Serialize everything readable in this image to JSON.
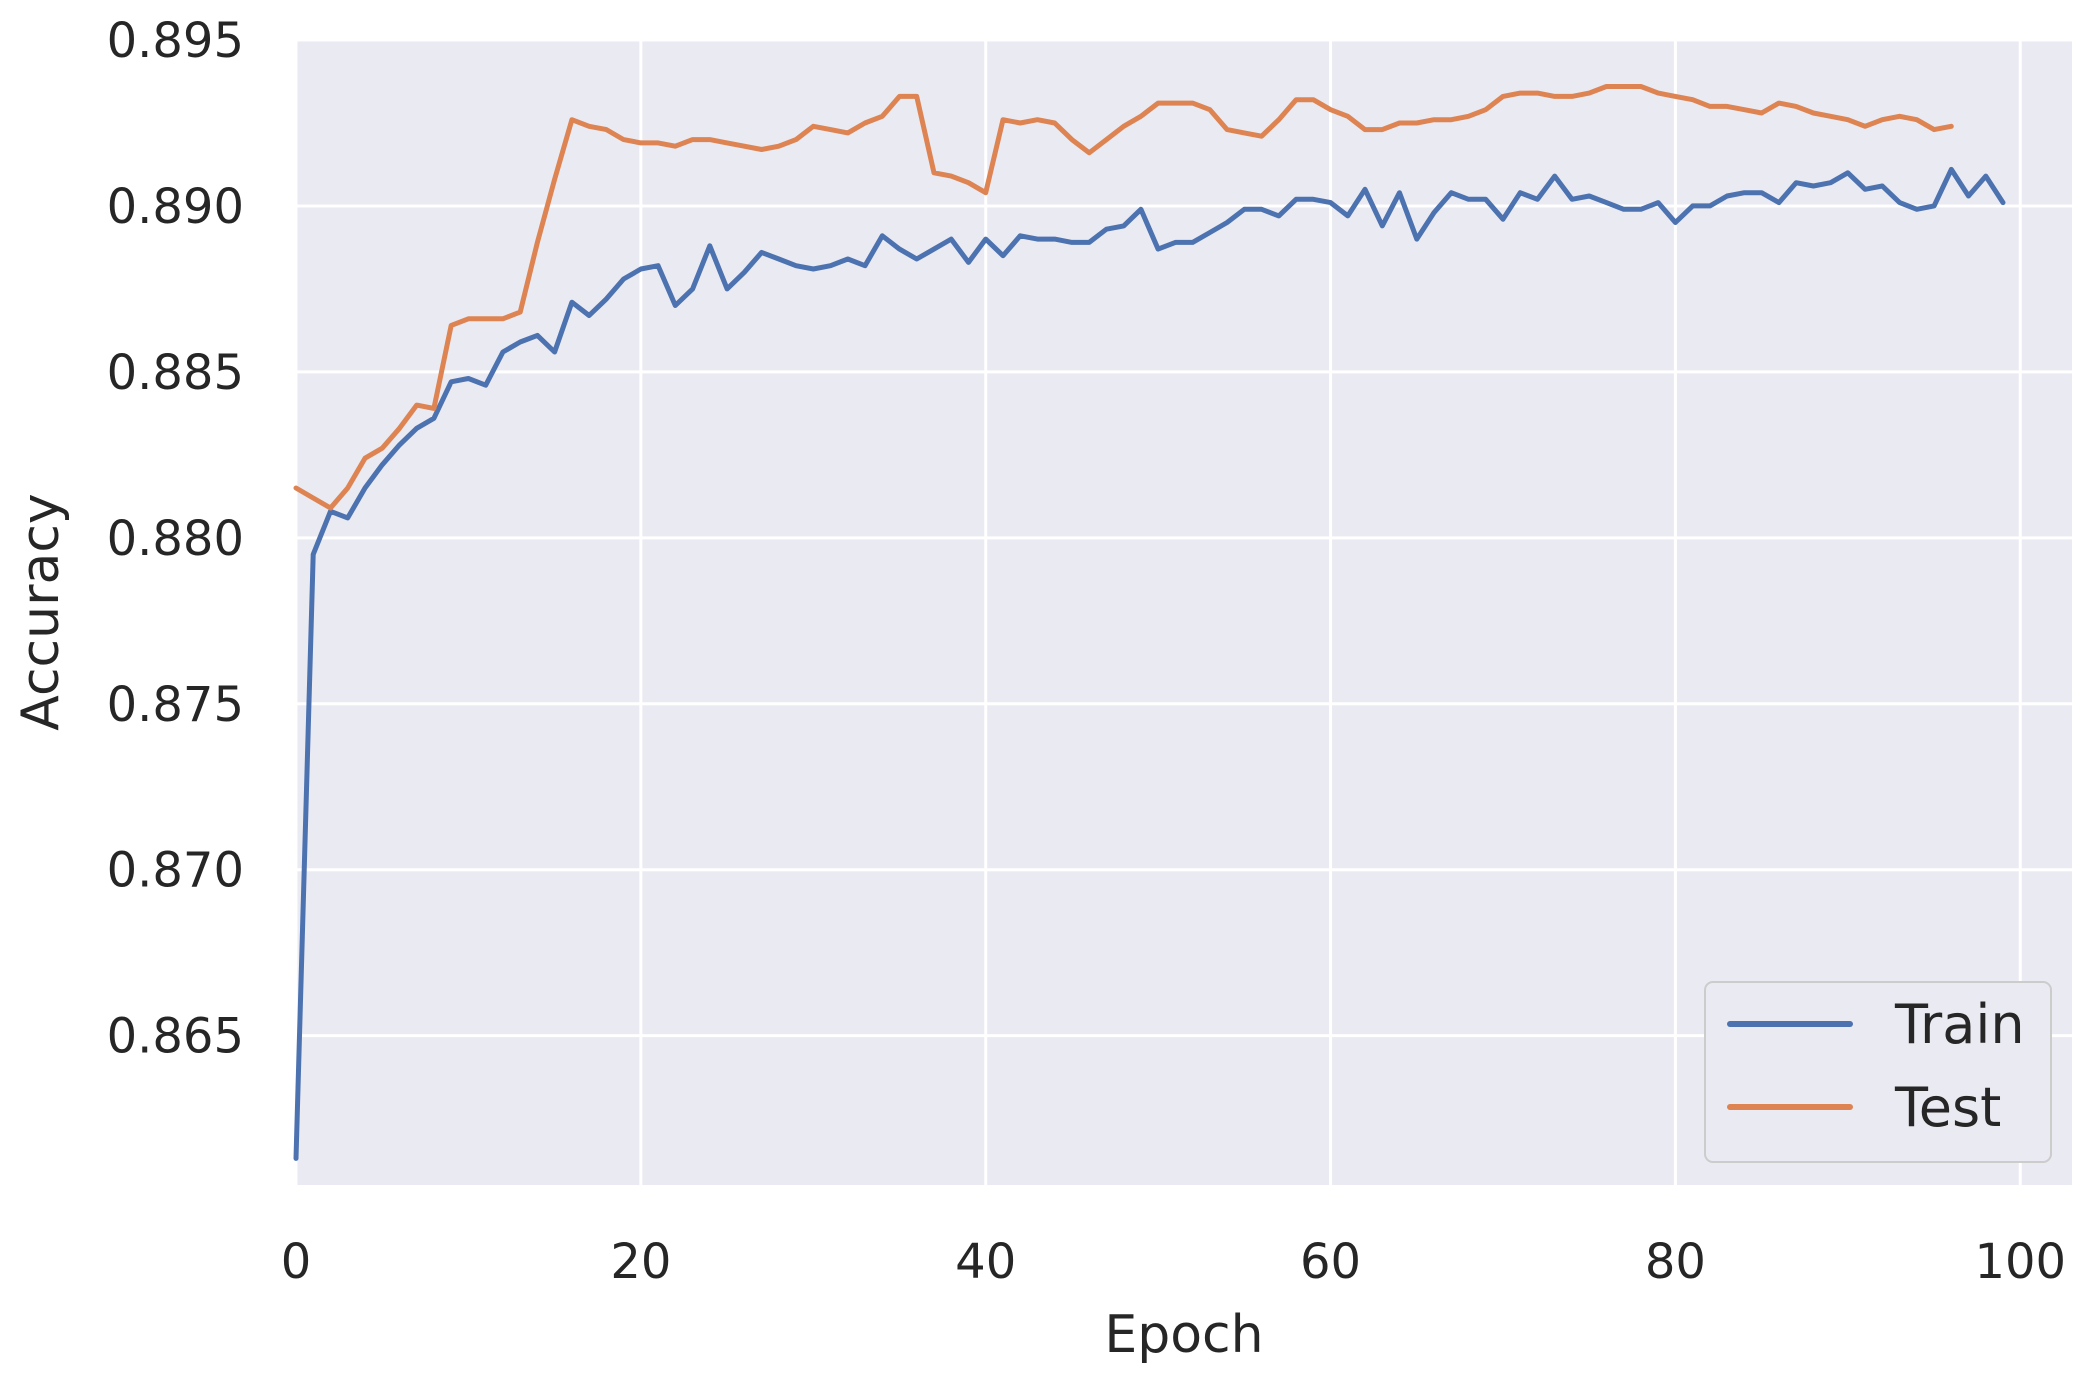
{
  "chart_data": {
    "type": "line",
    "xlabel": "Epoch",
    "ylabel": "Accuracy",
    "xlim": [
      0,
      103
    ],
    "ylim": [
      0.8605,
      0.895
    ],
    "xticks": [
      0,
      20,
      40,
      60,
      80,
      100
    ],
    "xtick_labels": [
      "0",
      "20",
      "40",
      "60",
      "80",
      "100"
    ],
    "yticks": [
      0.865,
      0.87,
      0.875,
      0.88,
      0.885,
      0.89,
      0.895
    ],
    "ytick_labels": [
      "0.865",
      "0.870",
      "0.875",
      "0.880",
      "0.885",
      "0.890",
      "0.895"
    ],
    "grid": true,
    "legend_position": "bottom-right",
    "series": [
      {
        "name": "Train",
        "color": "#4c72b0",
        "x": [
          0,
          1,
          2,
          3,
          4,
          5,
          6,
          7,
          8,
          9,
          10,
          11,
          12,
          13,
          14,
          15,
          16,
          17,
          18,
          19,
          20,
          21,
          22,
          23,
          24,
          25,
          26,
          27,
          28,
          29,
          30,
          31,
          32,
          33,
          34,
          35,
          36,
          37,
          38,
          39,
          40,
          41,
          42,
          43,
          44,
          45,
          46,
          47,
          48,
          49,
          50,
          51,
          52,
          53,
          54,
          55,
          56,
          57,
          58,
          59,
          60,
          61,
          62,
          63,
          64,
          65,
          66,
          67,
          68,
          69,
          70,
          71,
          72,
          73,
          74,
          75,
          76,
          77,
          78,
          79,
          80,
          81,
          82,
          83,
          84,
          85,
          86,
          87,
          88,
          89,
          90,
          91,
          92,
          93,
          94,
          95,
          96,
          97,
          98,
          99
        ],
        "y": [
          0.8613,
          0.8795,
          0.8808,
          0.8806,
          0.8815,
          0.8822,
          0.8828,
          0.8833,
          0.8836,
          0.8847,
          0.8848,
          0.8846,
          0.8856,
          0.8859,
          0.8861,
          0.8856,
          0.8871,
          0.8867,
          0.8872,
          0.8878,
          0.8881,
          0.8882,
          0.887,
          0.8875,
          0.8888,
          0.8875,
          0.888,
          0.8886,
          0.8884,
          0.8882,
          0.8881,
          0.8882,
          0.8884,
          0.8882,
          0.8891,
          0.8887,
          0.8884,
          0.8887,
          0.889,
          0.8883,
          0.889,
          0.8885,
          0.8891,
          0.889,
          0.889,
          0.8889,
          0.8889,
          0.8893,
          0.8894,
          0.8899,
          0.8887,
          0.8889,
          0.8889,
          0.8892,
          0.8895,
          0.8899,
          0.8899,
          0.8897,
          0.8902,
          0.8902,
          0.8901,
          0.8897,
          0.8905,
          0.8894,
          0.8904,
          0.889,
          0.8898,
          0.8904,
          0.8902,
          0.8902,
          0.8896,
          0.8904,
          0.8902,
          0.8909,
          0.8902,
          0.8903,
          0.8901,
          0.8899,
          0.8899,
          0.8901,
          0.8895,
          0.89,
          0.89,
          0.8903,
          0.8904,
          0.8904,
          0.8901,
          0.8907,
          0.8906,
          0.8907,
          0.891,
          0.8905,
          0.8906,
          0.8901,
          0.8899,
          0.89,
          0.8911,
          0.8903,
          0.8909,
          0.8901
        ]
      },
      {
        "name": "Test",
        "color": "#dd8452",
        "x": [
          0,
          1,
          2,
          3,
          4,
          5,
          6,
          7,
          8,
          9,
          10,
          11,
          12,
          13,
          14,
          15,
          16,
          17,
          18,
          19,
          20,
          21,
          22,
          23,
          24,
          25,
          26,
          27,
          28,
          29,
          30,
          31,
          32,
          33,
          34,
          35,
          36,
          37,
          38,
          39,
          40,
          41,
          42,
          43,
          44,
          45,
          46,
          47,
          48,
          49,
          50,
          51,
          52,
          53,
          54,
          55,
          56,
          57,
          58,
          59,
          60,
          61,
          62,
          63,
          64,
          65,
          66,
          67,
          68,
          69,
          70,
          71,
          72,
          73,
          74,
          75,
          76,
          77,
          78,
          79,
          80,
          81,
          82,
          83,
          84,
          85,
          86,
          87,
          88,
          89,
          90,
          91,
          92,
          93,
          94,
          95,
          96
        ],
        "y": [
          0.8815,
          0.8812,
          0.8809,
          0.8815,
          0.8824,
          0.8827,
          0.8833,
          0.884,
          0.8839,
          0.8864,
          0.8866,
          0.8866,
          0.8866,
          0.8868,
          0.8889,
          0.8908,
          0.8926,
          0.8924,
          0.8923,
          0.892,
          0.8919,
          0.8919,
          0.8918,
          0.892,
          0.892,
          0.8919,
          0.8918,
          0.8917,
          0.8918,
          0.892,
          0.8924,
          0.8923,
          0.8922,
          0.8925,
          0.8927,
          0.8933,
          0.8933,
          0.891,
          0.8909,
          0.8907,
          0.8904,
          0.8926,
          0.8925,
          0.8926,
          0.8925,
          0.892,
          0.8916,
          0.892,
          0.8924,
          0.8927,
          0.8931,
          0.8931,
          0.8931,
          0.8929,
          0.8923,
          0.8922,
          0.8921,
          0.8926,
          0.8932,
          0.8932,
          0.8929,
          0.8927,
          0.8923,
          0.8923,
          0.8925,
          0.8925,
          0.8926,
          0.8926,
          0.8927,
          0.8929,
          0.8933,
          0.8934,
          0.8934,
          0.8933,
          0.8933,
          0.8934,
          0.8936,
          0.8936,
          0.8936,
          0.8934,
          0.8933,
          0.8932,
          0.893,
          0.893,
          0.8929,
          0.8928,
          0.8931,
          0.893,
          0.8928,
          0.8927,
          0.8926,
          0.8924,
          0.8926,
          0.8927,
          0.8926,
          0.8923,
          0.8924
        ]
      }
    ]
  }
}
